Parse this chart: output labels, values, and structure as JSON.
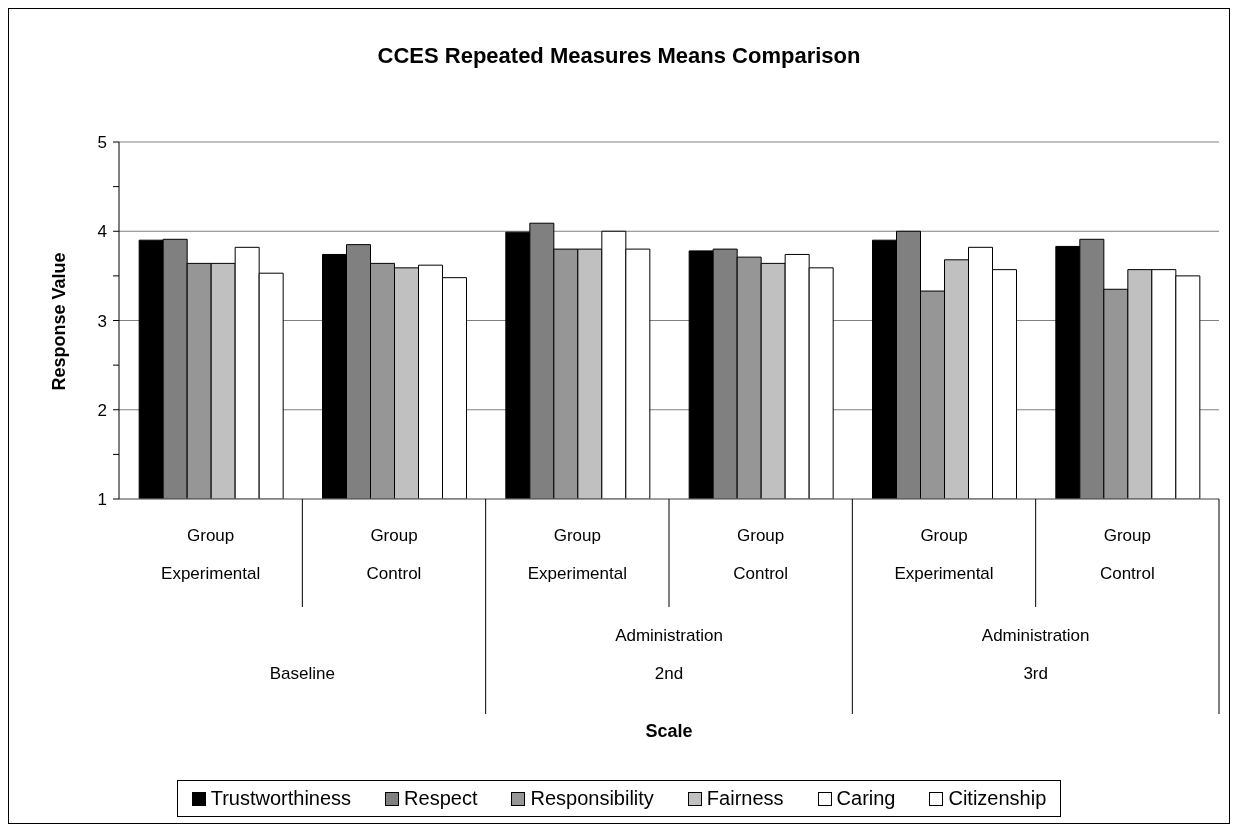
{
  "chart_data": {
    "type": "bar",
    "title": "CCES Repeated Measures Means Comparison",
    "ylabel": "Response Value",
    "categories": [
      "Group\nExperimental",
      "Group\nControl",
      "Group\nExperimental",
      "Group\nControl",
      "Group\nExperimental",
      "Group\nControl"
    ],
    "annotations": [
      "Baseline",
      "Administration\n2nd",
      "Administration\n3rd",
      "Scale"
    ],
    "series": [
      {
        "name": "Trustworthiness",
        "color": "#000000",
        "values": [
          3.9,
          3.74,
          3.99,
          3.78,
          3.9,
          3.83
        ]
      },
      {
        "name": "Respect",
        "color": "#808080",
        "values": [
          3.91,
          3.85,
          4.09,
          3.8,
          4.0,
          3.91
        ]
      },
      {
        "name": "Responsibility",
        "color": "#969696",
        "values": [
          3.64,
          3.64,
          3.8,
          3.71,
          3.33,
          3.35
        ]
      },
      {
        "name": "Fairness",
        "color": "#c0c0c0",
        "values": [
          3.64,
          3.59,
          3.8,
          3.64,
          3.68,
          3.57
        ]
      },
      {
        "name": "Caring",
        "color": "#ffffff",
        "values": [
          3.82,
          3.62,
          4.0,
          3.74,
          3.82,
          3.57
        ]
      },
      {
        "name": "Citizenship",
        "color": "#ffffff",
        "values": [
          3.53,
          3.48,
          3.8,
          3.59,
          3.57,
          3.5
        ]
      }
    ],
    "ylim": [
      1,
      5
    ],
    "yticks": [
      1,
      {
        "value": 1.5,
        "label": null
      },
      2,
      {
        "value": 2.5,
        "label": null
      },
      3,
      {
        "value": 3.5,
        "label": null
      },
      4,
      {
        "value": 4.5,
        "label": null
      },
      5
    ],
    "grid": "y",
    "legend": "bottom"
  }
}
